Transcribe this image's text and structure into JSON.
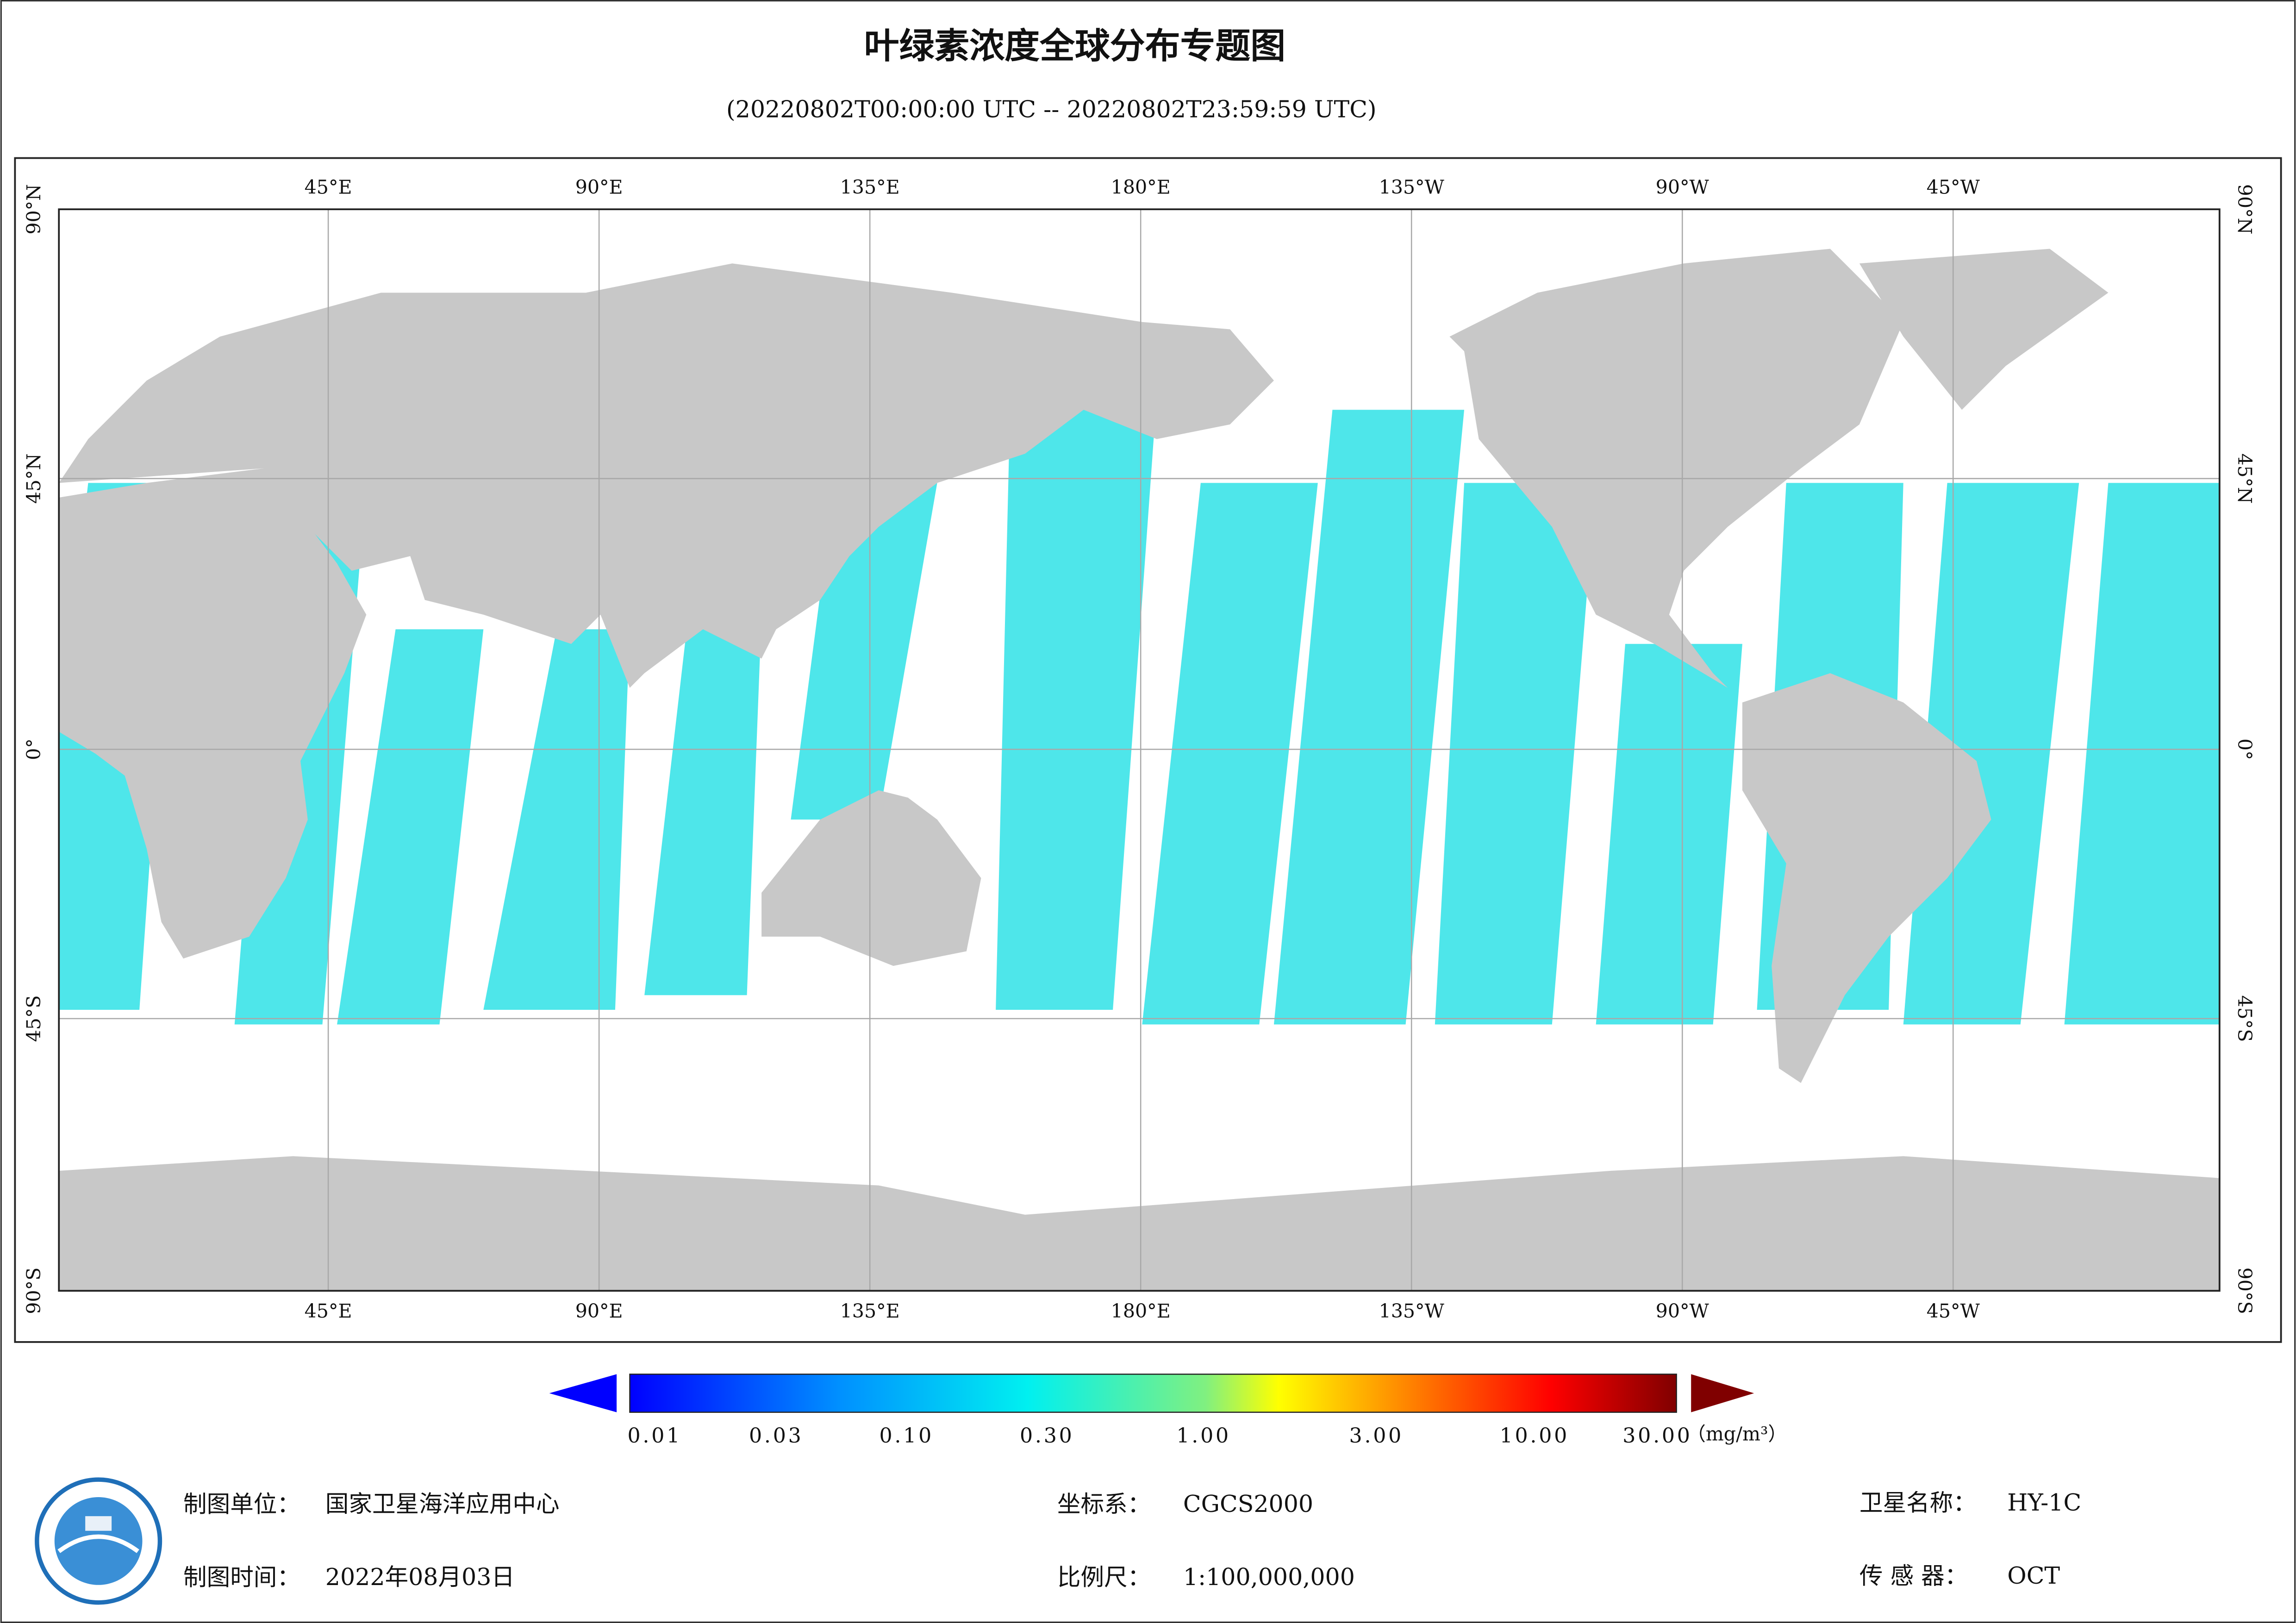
{
  "header": {
    "title": "叶绿素浓度全球分布专题图",
    "subtitle": "(20220802T00:00:00 UTC -- 20220802T23:59:59 UTC)"
  },
  "map": {
    "lon_labels": [
      "45°E",
      "90°E",
      "135°E",
      "180°E",
      "135°W",
      "90°W",
      "45°W"
    ],
    "lat_labels": [
      "90°N",
      "45°N",
      "0°",
      "45°S",
      "90°S"
    ]
  },
  "colorbar": {
    "ticks": [
      "0.01",
      "0.03",
      "0.10",
      "0.30",
      "1.00",
      "3.00",
      "10.00",
      "30.00"
    ],
    "unit": "（mg/m³）"
  },
  "footer": {
    "items": [
      {
        "label": "制图单位：",
        "value": "国家卫星海洋应用中心"
      },
      {
        "label": "制图时间：",
        "value": "2022年08月03日"
      },
      {
        "label": "坐标系：",
        "value": "CGCS2000"
      },
      {
        "label": "比例尺：",
        "value": "1:100,000,000"
      },
      {
        "label": "卫星名称：",
        "value": "HY-1C"
      },
      {
        "label": "传 感 器：",
        "value": "OCT"
      }
    ]
  }
}
